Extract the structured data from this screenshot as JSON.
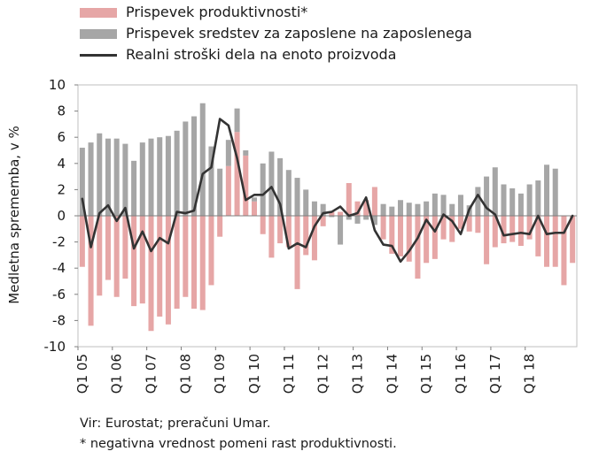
{
  "colors": {
    "productivity": "#E6A6A6",
    "compensation": "#A6A6A6",
    "ulc": "#333333"
  },
  "legend": {
    "productivity": "Prispevek produktivnosti*",
    "compensation": "Prispevek sredstev za zaposlene na zaposlenega",
    "ulc": "Realni stroški dela na enoto proizvoda"
  },
  "footer": {
    "source": "Vir: Eurostat; preračuni Umar.",
    "note": "* negativna vrednost pomeni rast produktivnosti."
  },
  "chart_data": {
    "type": "bar",
    "ylabel": "Medletna sprememba, v %",
    "ylim": [
      -10,
      10
    ],
    "yticks": [
      "10",
      "8",
      "6",
      "4",
      "2",
      "0",
      "-2",
      "-4",
      "-6",
      "-8",
      "-10"
    ],
    "xtick_labels": [
      "Q1 05",
      "Q1 06",
      "Q1 07",
      "Q1 08",
      "Q1 09",
      "Q1 10",
      "Q1 11",
      "Q1 12",
      "Q1 13",
      "Q1 14",
      "Q1 15",
      "Q1 16",
      "Q1 17",
      "Q1 18"
    ],
    "series": [
      {
        "name": "Prispevek produktivnosti*",
        "values": [
          -3.9,
          -8.4,
          -6.1,
          -4.9,
          -6.2,
          -4.8,
          -6.9,
          -6.7,
          -8.8,
          -7.7,
          -8.3,
          -7.1,
          -6.2,
          -7.1,
          -7.2,
          -5.3,
          -1.6,
          3.8,
          6.4,
          4.6,
          1.1,
          -1.4,
          -3.2,
          -2.1,
          -2.4,
          -5.6,
          -3.0,
          -3.4,
          -0.8,
          0.3,
          0.3,
          2.5,
          1.1,
          1.2,
          2.2,
          -1.8,
          -2.9,
          -3.1,
          -3.5,
          -4.8,
          -3.6,
          -3.3,
          -1.8,
          -2.0,
          -1.0,
          -1.2,
          -1.3,
          -3.7,
          -2.4,
          -2.1,
          -2.0,
          -2.3,
          -1.8,
          -3.1,
          -3.9,
          -3.9,
          -5.3,
          -3.6
        ]
      },
      {
        "name": "Prispevek sredstev za zaposlene na zaposlenega",
        "values": [
          5.2,
          5.6,
          6.3,
          5.9,
          5.9,
          5.5,
          4.2,
          5.6,
          5.9,
          6.0,
          6.1,
          6.5,
          7.2,
          7.6,
          8.6,
          5.3,
          3.6,
          2.0,
          1.8,
          0.4,
          0.3,
          4.0,
          4.9,
          4.4,
          3.5,
          2.9,
          2.0,
          1.1,
          0.9,
          -0.1,
          -2.2,
          -0.3,
          -0.6,
          -0.3,
          -0.7,
          0.9,
          0.7,
          1.2,
          1.0,
          0.9,
          1.1,
          1.7,
          1.6,
          0.9,
          1.6,
          0.8,
          2.2,
          3.0,
          3.7,
          2.4,
          2.1,
          1.7,
          2.4,
          2.7,
          3.9,
          3.6,
          0.0,
          0.0
        ]
      },
      {
        "name": "Realni stroški dela na enoto proizvoda",
        "values": [
          1.3,
          -2.4,
          0.2,
          0.8,
          -0.4,
          0.6,
          -2.5,
          -1.2,
          -2.7,
          -1.7,
          -2.1,
          0.3,
          0.2,
          0.4,
          3.2,
          3.7,
          7.4,
          6.9,
          4.4,
          1.2,
          1.6,
          1.6,
          2.2,
          0.9,
          -2.5,
          -2.1,
          -2.4,
          -0.8,
          0.2,
          0.3,
          0.7,
          0.0,
          0.2,
          1.4,
          -1.1,
          -2.2,
          -2.3,
          -3.5,
          -2.7,
          -1.7,
          -0.3,
          -1.2,
          0.1,
          -0.4,
          -1.4,
          0.5,
          1.6,
          0.6,
          0.1,
          -1.5,
          -1.4,
          -1.3,
          -1.4,
          0.0,
          -1.4,
          -1.3,
          -1.3,
          0.0
        ]
      }
    ]
  }
}
